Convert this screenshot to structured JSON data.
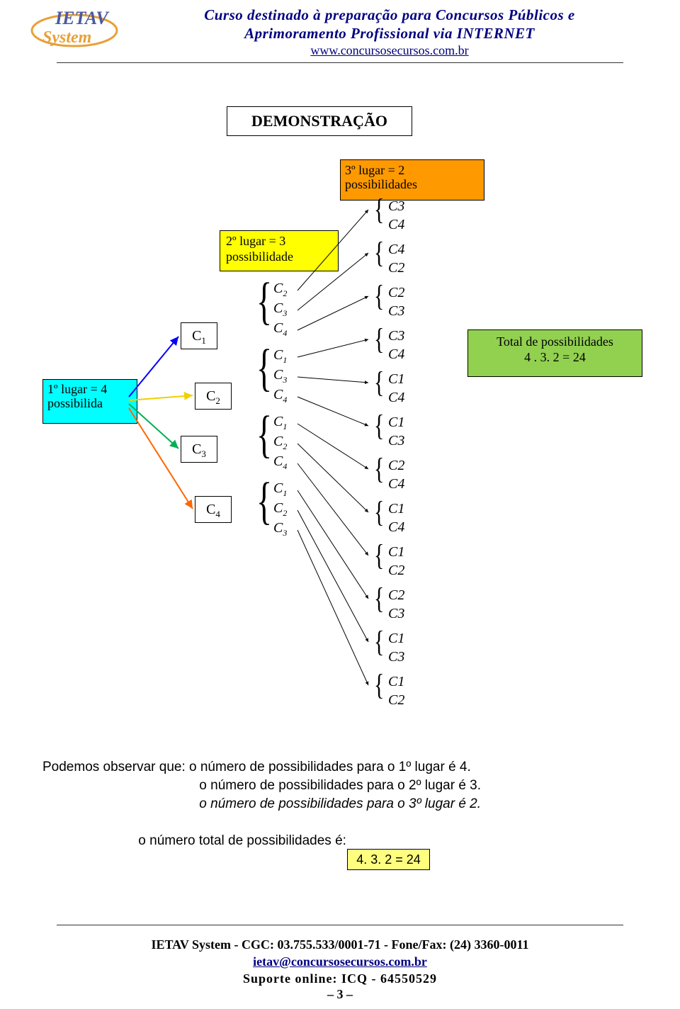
{
  "header": {
    "title_l1": "Curso destinado à preparação para Concursos Públicos e",
    "title_l2": "Aprimoramento Profissional via INTERNET",
    "link": "www.concursosecursos.com.br",
    "logo_text_top": "IETAV",
    "logo_text_bottom": "System",
    "logo_primary": "#4a5aa0",
    "logo_accent": "#e8a038"
  },
  "boxes": {
    "demo": "DEMONSTRAÇÃO",
    "orange_l1": "3º lugar = 2",
    "orange_l2": "possibilidades",
    "yellow_l1": "2º lugar = 3",
    "yellow_l2": "possibilidade",
    "cyan_l1": "1º lugar = 4",
    "cyan_l2": "possibilida",
    "green_l1": "Total de possibilidades",
    "green_l2": "4 . 3. 2 = 24"
  },
  "level1": [
    "C₁",
    "C₂",
    "C₃",
    "C₄"
  ],
  "level2": [
    [
      "C₂",
      "C₃",
      "C₄"
    ],
    [
      "C₁",
      "C₃",
      "C₄"
    ],
    [
      "C₁",
      "C₂",
      "C₄"
    ],
    [
      "C₁",
      "C₂",
      "C₃"
    ]
  ],
  "level3": [
    "C3",
    "C4",
    "C4",
    "C2",
    "C2",
    "C3",
    "C3",
    "C4",
    "C1",
    "C4",
    "C1",
    "C3",
    "C2",
    "C4",
    "C1",
    "C4",
    "C1",
    "C2",
    "C2",
    "C3",
    "C1",
    "C3",
    "C1",
    "C2"
  ],
  "explain": {
    "intro": "Podemos observar que:",
    "p1": "o número de possibilidades para o 1º lugar é 4.",
    "p2": "o número de possibilidades para o 2º lugar é 3.",
    "p3": "o número de possibilidades para o 3º lugar é 2.",
    "total_label": "o número total de possibilidades é:",
    "total_value": "4. 3. 2 = 24"
  },
  "footer": {
    "l1": "IETAV System - CGC: 03.755.533/0001-71 - Fone/Fax: (24) 3360-0011",
    "mail": "ietav@concursosecursos.com.br",
    "icq": "Suporte online: ICQ - 64550529",
    "page": "– 3 –"
  },
  "colors": {
    "arrow_blue": "#0000ff",
    "arrow_yellow": "#f0d000",
    "arrow_green": "#00b050",
    "arrow_orange": "#ff6600",
    "line_black": "#000000"
  }
}
